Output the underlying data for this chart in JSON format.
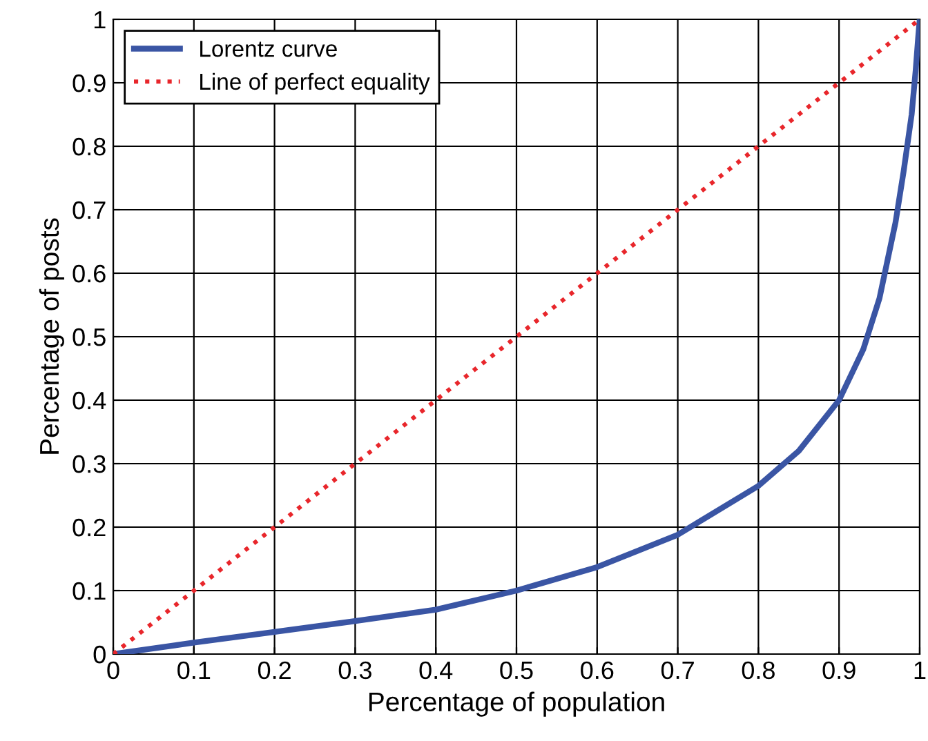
{
  "chart_data": {
    "type": "line",
    "xlabel": "Percentage of population",
    "ylabel": "Percentage of posts",
    "xlim": [
      0,
      1
    ],
    "ylim": [
      0,
      1
    ],
    "xticks": [
      0,
      0.1,
      0.2,
      0.3,
      0.4,
      0.5,
      0.6,
      0.7,
      0.8,
      0.9,
      1
    ],
    "yticks": [
      0,
      0.1,
      0.2,
      0.3,
      0.4,
      0.5,
      0.6,
      0.7,
      0.8,
      0.9,
      1
    ],
    "grid": true,
    "legend": "top left",
    "marker": "none",
    "series": [
      {
        "name": "Lorentz curve",
        "color": "#3a55a4",
        "line_style": "solid",
        "x": [
          0,
          0.1,
          0.2,
          0.3,
          0.4,
          0.5,
          0.6,
          0.7,
          0.8,
          0.85,
          0.9,
          0.93,
          0.95,
          0.97,
          0.98,
          0.99,
          0.995,
          0.998,
          1
        ],
        "values": [
          0,
          0.018,
          0.035,
          0.052,
          0.07,
          0.1,
          0.137,
          0.188,
          0.265,
          0.32,
          0.4,
          0.48,
          0.56,
          0.68,
          0.76,
          0.85,
          0.92,
          0.97,
          1
        ]
      },
      {
        "name": "Line of perfect equality",
        "color": "#e8262b",
        "line_style": "dotted",
        "x": [
          0,
          1
        ],
        "values": [
          0,
          1
        ]
      }
    ]
  }
}
